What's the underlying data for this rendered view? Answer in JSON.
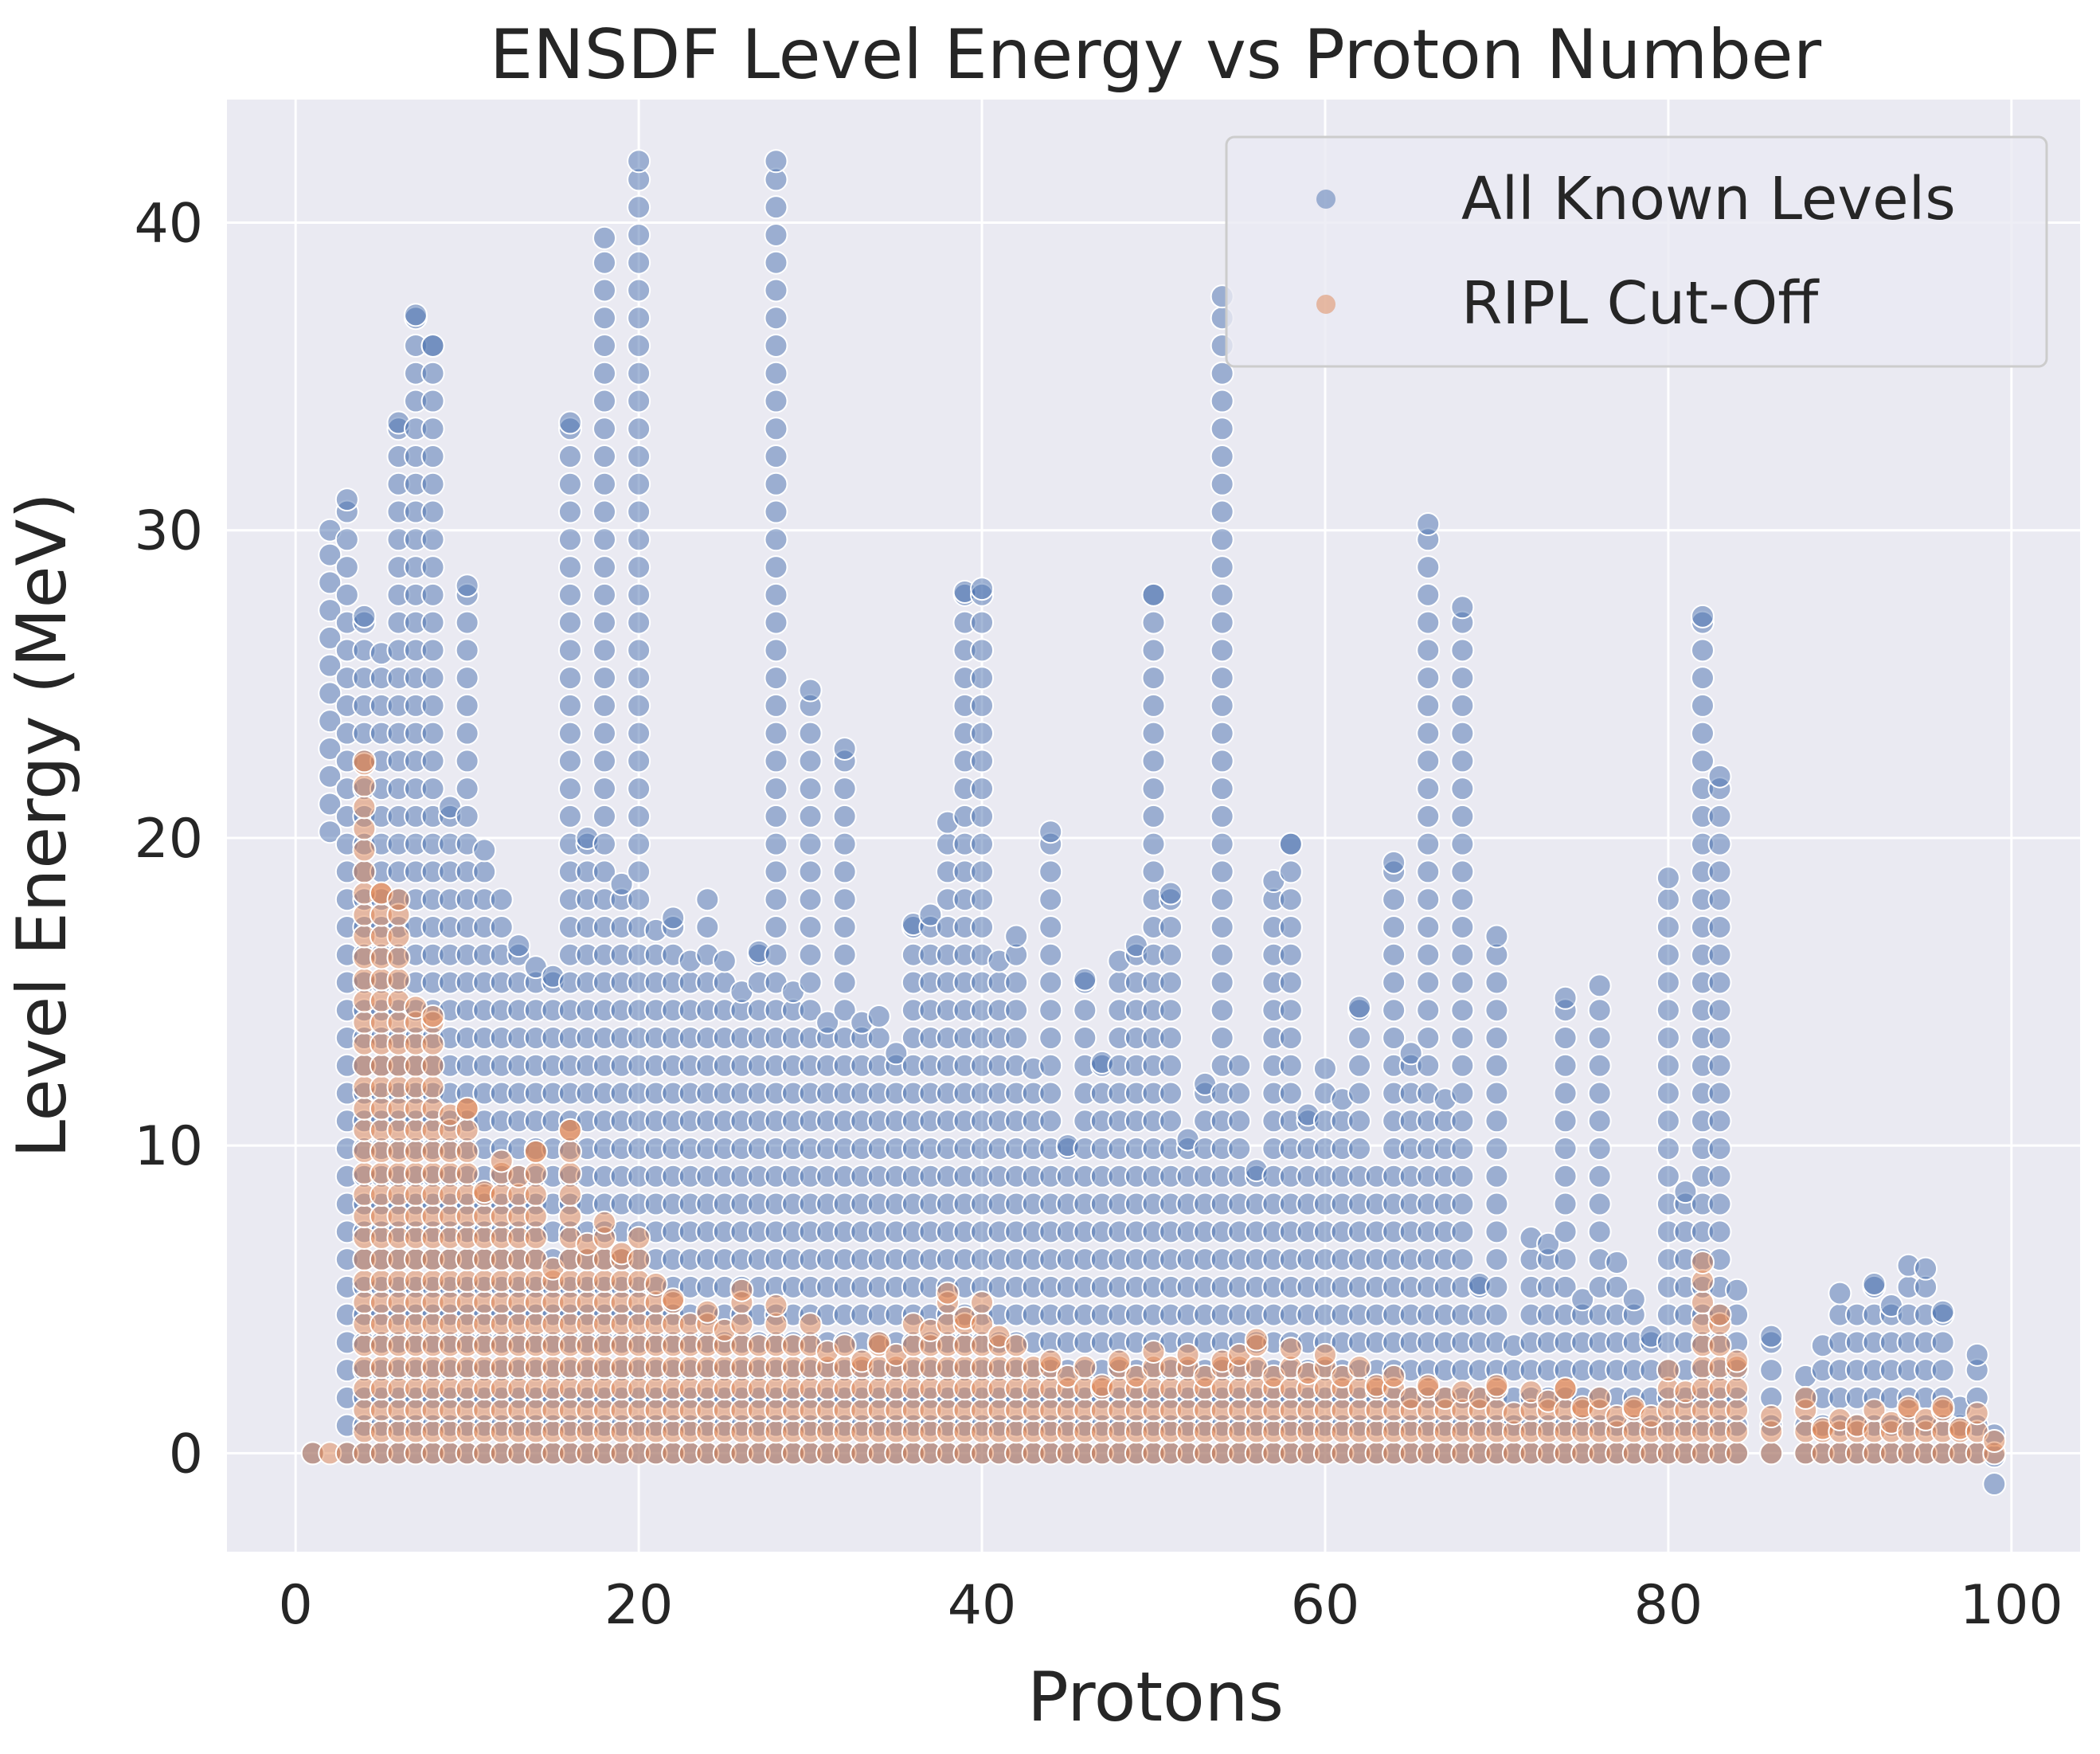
{
  "chart_data": {
    "type": "scatter",
    "title": "ENSDF Level Energy vs Proton Number",
    "xlabel": "Protons",
    "ylabel": "Level Energy (MeV)",
    "xlim": [
      -4,
      104
    ],
    "ylim": [
      -3.2,
      44
    ],
    "xticks": [
      0,
      20,
      40,
      60,
      80,
      100
    ],
    "yticks": [
      0,
      10,
      20,
      30,
      40
    ],
    "xtick_labels": [
      "0",
      "20",
      "40",
      "60",
      "80",
      "100"
    ],
    "ytick_labels": [
      "0",
      "10",
      "20",
      "30",
      "40"
    ],
    "grid": true,
    "legend_position": "top-right",
    "colors": {
      "background": "#eaeaf2",
      "grid": "#ffffff",
      "all_known": "#4c72b0",
      "ripl": "#dd8452"
    },
    "series": [
      {
        "name": "All Known Levels",
        "color": "#4c72b0",
        "columns": [
          [
            1,
            0,
            0
          ],
          [
            2,
            20.2,
            30.0
          ],
          [
            3,
            0,
            31.0
          ],
          [
            4,
            0,
            27.2
          ],
          [
            5,
            0,
            26.0
          ],
          [
            6,
            0,
            33.5
          ],
          [
            7,
            0,
            37.0
          ],
          [
            8,
            0,
            36.0
          ],
          [
            9,
            0,
            21.0
          ],
          [
            10,
            0,
            28.2
          ],
          [
            11,
            0,
            19.6
          ],
          [
            12,
            0,
            18.0
          ],
          [
            13,
            0,
            16.5
          ],
          [
            14,
            0,
            15.8
          ],
          [
            15,
            0,
            15.5
          ],
          [
            16,
            0,
            33.5
          ],
          [
            17,
            0,
            20.0
          ],
          [
            18,
            0,
            39.5
          ],
          [
            19,
            0,
            18.5
          ],
          [
            20,
            0,
            42.0
          ],
          [
            21,
            0,
            17.0
          ],
          [
            22,
            0,
            17.4
          ],
          [
            23,
            0,
            16.0
          ],
          [
            24,
            0,
            18.0
          ],
          [
            25,
            0,
            16.0
          ],
          [
            26,
            0,
            15.0
          ],
          [
            27,
            0,
            16.3
          ],
          [
            28,
            0,
            42.0
          ],
          [
            29,
            0,
            15.0
          ],
          [
            30,
            0,
            24.8
          ],
          [
            31,
            0,
            14.0
          ],
          [
            32,
            0,
            22.9
          ],
          [
            33,
            0,
            14.0
          ],
          [
            34,
            0,
            14.2
          ],
          [
            35,
            0,
            13.0
          ],
          [
            36,
            0,
            17.2
          ],
          [
            37,
            0,
            17.5
          ],
          [
            38,
            0,
            20.5
          ],
          [
            39,
            0,
            28.0
          ],
          [
            40,
            0,
            28.1
          ],
          [
            41,
            0,
            16.0
          ],
          [
            42,
            0,
            16.8
          ],
          [
            43,
            0,
            12.5
          ],
          [
            44,
            0,
            20.2
          ],
          [
            45,
            0,
            10.0
          ],
          [
            46,
            0,
            15.4
          ],
          [
            47,
            0,
            12.7
          ],
          [
            48,
            0,
            16.0
          ],
          [
            49,
            0,
            16.5
          ],
          [
            50,
            0,
            27.9
          ],
          [
            51,
            0,
            18.2
          ],
          [
            52,
            0,
            10.2
          ],
          [
            53,
            0,
            12.0
          ],
          [
            54,
            0,
            37.6
          ],
          [
            55,
            0,
            12.6
          ],
          [
            56,
            0,
            9.2
          ],
          [
            57,
            0,
            18.6
          ],
          [
            58,
            0,
            19.8
          ],
          [
            59,
            0,
            11.0
          ],
          [
            60,
            0,
            12.5
          ],
          [
            61,
            0,
            11.5
          ],
          [
            62,
            0,
            14.5
          ],
          [
            63,
            0,
            9.0
          ],
          [
            64,
            0,
            19.2
          ],
          [
            65,
            0,
            13.0
          ],
          [
            66,
            0,
            30.2
          ],
          [
            67,
            0,
            11.5
          ],
          [
            68,
            0,
            27.5
          ],
          [
            69,
            0,
            5.5
          ],
          [
            70,
            0,
            16.8
          ],
          [
            71,
            0,
            3.5
          ],
          [
            72,
            0,
            7.0
          ],
          [
            73,
            0,
            6.8
          ],
          [
            74,
            0,
            14.8
          ],
          [
            75,
            0,
            5.0
          ],
          [
            76,
            0,
            15.2
          ],
          [
            77,
            0,
            6.2
          ],
          [
            78,
            0,
            5.0
          ],
          [
            79,
            0,
            3.8
          ],
          [
            80,
            0,
            18.7
          ],
          [
            81,
            0,
            8.5
          ],
          [
            82,
            0,
            27.2
          ],
          [
            83,
            0,
            22.0
          ],
          [
            84,
            0,
            5.3
          ],
          [
            86,
            0,
            3.8
          ],
          [
            88,
            0,
            2.5
          ],
          [
            89,
            0,
            3.5
          ],
          [
            90,
            0,
            5.2
          ],
          [
            91,
            0,
            4.5
          ],
          [
            92,
            0,
            5.5
          ],
          [
            93,
            0,
            4.8
          ],
          [
            94,
            0,
            6.1
          ],
          [
            95,
            0,
            6.0
          ],
          [
            96,
            0,
            4.6
          ],
          [
            97,
            0,
            1.5
          ],
          [
            98,
            0,
            3.2
          ],
          [
            99,
            -1.0,
            0.6
          ]
        ]
      },
      {
        "name": "RIPL Cut-Off",
        "color": "#dd8452",
        "columns": [
          [
            1,
            0,
            0
          ],
          [
            2,
            0,
            0
          ],
          [
            3,
            0,
            0
          ],
          [
            4,
            0,
            22.5
          ],
          [
            5,
            0,
            18.2
          ],
          [
            6,
            0,
            18.0
          ],
          [
            7,
            0,
            14.5
          ],
          [
            8,
            0,
            14.2
          ],
          [
            9,
            0,
            11.0
          ],
          [
            10,
            0,
            11.2
          ],
          [
            11,
            0,
            8.5
          ],
          [
            12,
            0,
            9.5
          ],
          [
            13,
            0,
            9.0
          ],
          [
            14,
            0,
            9.8
          ],
          [
            15,
            0,
            6.0
          ],
          [
            16,
            0,
            10.5
          ],
          [
            17,
            0,
            6.8
          ],
          [
            18,
            0,
            7.5
          ],
          [
            19,
            0,
            6.5
          ],
          [
            20,
            0,
            7.0
          ],
          [
            21,
            0,
            5.5
          ],
          [
            22,
            0,
            5.0
          ],
          [
            23,
            0,
            4.2
          ],
          [
            24,
            0,
            4.6
          ],
          [
            25,
            0,
            4.0
          ],
          [
            26,
            0,
            5.3
          ],
          [
            27,
            0,
            3.5
          ],
          [
            28,
            0,
            4.8
          ],
          [
            29,
            0,
            3.5
          ],
          [
            30,
            0,
            4.2
          ],
          [
            31,
            0,
            3.3
          ],
          [
            32,
            0,
            3.5
          ],
          [
            33,
            0,
            3.0
          ],
          [
            34,
            0,
            3.6
          ],
          [
            35,
            0,
            3.2
          ],
          [
            36,
            0,
            4.2
          ],
          [
            37,
            0,
            4.0
          ],
          [
            38,
            0,
            5.2
          ],
          [
            39,
            0,
            4.4
          ],
          [
            40,
            0,
            4.9
          ],
          [
            41,
            0,
            3.8
          ],
          [
            42,
            0,
            3.5
          ],
          [
            43,
            0,
            2.8
          ],
          [
            44,
            0,
            3.0
          ],
          [
            45,
            0,
            2.5
          ],
          [
            46,
            0,
            2.8
          ],
          [
            47,
            0,
            2.2
          ],
          [
            48,
            0,
            3.0
          ],
          [
            49,
            0,
            2.5
          ],
          [
            50,
            0,
            3.3
          ],
          [
            51,
            0,
            2.8
          ],
          [
            52,
            0,
            3.2
          ],
          [
            53,
            0,
            2.5
          ],
          [
            54,
            0,
            3.0
          ],
          [
            55,
            0,
            3.2
          ],
          [
            56,
            0,
            3.7
          ],
          [
            57,
            0,
            2.5
          ],
          [
            58,
            0,
            3.4
          ],
          [
            59,
            0,
            2.6
          ],
          [
            60,
            0,
            3.2
          ],
          [
            61,
            0,
            2.5
          ],
          [
            62,
            0,
            2.8
          ],
          [
            63,
            0,
            2.2
          ],
          [
            64,
            0,
            2.5
          ],
          [
            65,
            0,
            1.8
          ],
          [
            66,
            0,
            2.2
          ],
          [
            67,
            0,
            1.8
          ],
          [
            68,
            0,
            2.0
          ],
          [
            69,
            0,
            1.8
          ],
          [
            70,
            0,
            2.2
          ],
          [
            71,
            0,
            1.3
          ],
          [
            72,
            0,
            2.0
          ],
          [
            73,
            0,
            1.7
          ],
          [
            74,
            0,
            2.1
          ],
          [
            75,
            0,
            1.5
          ],
          [
            76,
            0,
            1.8
          ],
          [
            77,
            0,
            1.2
          ],
          [
            78,
            0,
            1.5
          ],
          [
            79,
            0,
            1.2
          ],
          [
            80,
            0,
            2.7
          ],
          [
            81,
            0,
            2.0
          ],
          [
            82,
            0,
            6.2
          ],
          [
            83,
            0,
            4.5
          ],
          [
            84,
            0,
            3.0
          ],
          [
            86,
            0,
            1.2
          ],
          [
            88,
            0,
            1.8
          ],
          [
            89,
            0,
            0.8
          ],
          [
            90,
            0,
            1.1
          ],
          [
            91,
            0,
            0.9
          ],
          [
            92,
            0,
            1.4
          ],
          [
            93,
            0,
            1.0
          ],
          [
            94,
            0,
            1.5
          ],
          [
            95,
            0,
            1.1
          ],
          [
            96,
            0,
            1.5
          ],
          [
            97,
            0,
            0.8
          ],
          [
            98,
            0,
            1.3
          ],
          [
            99,
            0,
            0.4
          ]
        ]
      }
    ]
  }
}
